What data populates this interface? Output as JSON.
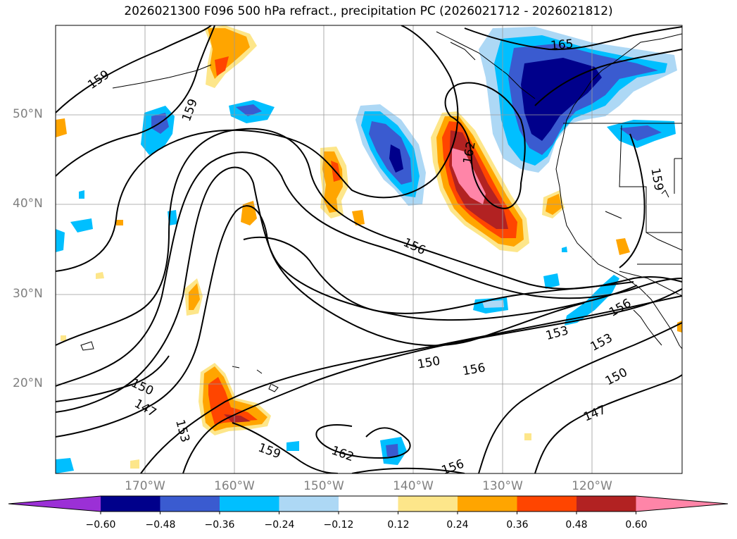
{
  "title": "2026021300 F096 500 hPa refract., precipitation PC (2026021712 - 2026021812)",
  "lat_labels": [
    "50°N",
    "40°N",
    "30°N",
    "20°N"
  ],
  "lon_labels": [
    "170°W",
    "160°W",
    "150°W",
    "140°W",
    "130°W",
    "120°W"
  ],
  "contour_labels": [
    "159",
    "159",
    "165",
    "162",
    "159",
    "156",
    "156",
    "153",
    "153",
    "150",
    "156",
    "150",
    "150",
    "147",
    "153",
    "159",
    "162",
    "156",
    "147"
  ],
  "colorbar": {
    "ticks": [
      "−0.60",
      "−0.48",
      "−0.36",
      "−0.24",
      "−0.12",
      "0.12",
      "0.24",
      "0.36",
      "0.48",
      "0.60"
    ],
    "colors": [
      "#9b30d6",
      "#00008b",
      "#3a5bd0",
      "#00bfff",
      "#add8f5",
      "#ffffff",
      "#fde68a",
      "#ffa500",
      "#ff4500",
      "#b22222",
      "#ff85a8"
    ]
  }
}
